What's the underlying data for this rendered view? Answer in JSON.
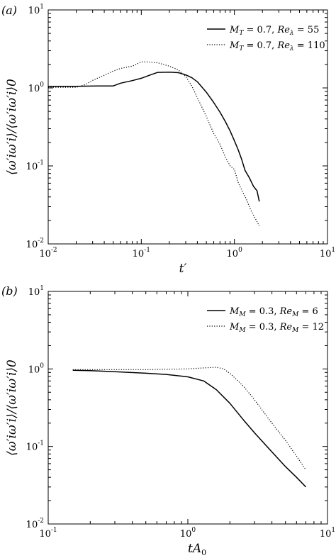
{
  "chart_data": [
    {
      "type": "line",
      "panel_label": "(a)",
      "xlabel": "t′",
      "ylabel": "⟨ω′iω′i⟩/⟨ω′iω′i⟩0",
      "xscale": "log",
      "yscale": "log",
      "xlim": [
        0.01,
        10
      ],
      "ylim": [
        0.01,
        10
      ],
      "x_ticks": [
        {
          "base": "10",
          "exp": "-2"
        },
        {
          "base": "10",
          "exp": "-1"
        },
        {
          "base": "10",
          "exp": "0"
        },
        {
          "base": "10",
          "exp": "1"
        }
      ],
      "y_ticks": [
        {
          "base": "10",
          "exp": "-2"
        },
        {
          "base": "10",
          "exp": "-1"
        },
        {
          "base": "10",
          "exp": "0"
        },
        {
          "base": "10",
          "exp": "1"
        }
      ],
      "legend_position": "top-right",
      "series": [
        {
          "name": "M_T = 0.7, Re_λ = 55",
          "style": "solid",
          "color": "#000000",
          "x": [
            0.01,
            0.02,
            0.035,
            0.05,
            0.06,
            0.08,
            0.1,
            0.12,
            0.15,
            0.2,
            0.25,
            0.3,
            0.35,
            0.4,
            0.5,
            0.6,
            0.7,
            0.8,
            0.9,
            1.0,
            1.1,
            1.2,
            1.3,
            1.45,
            1.6,
            1.75,
            1.85
          ],
          "y": [
            1.05,
            1.05,
            1.06,
            1.06,
            1.15,
            1.24,
            1.33,
            1.44,
            1.58,
            1.59,
            1.57,
            1.47,
            1.35,
            1.2,
            0.88,
            0.65,
            0.49,
            0.37,
            0.28,
            0.21,
            0.16,
            0.12,
            0.088,
            0.07,
            0.055,
            0.048,
            0.035
          ]
        },
        {
          "name": "M_T = 0.7, Re_λ = 110",
          "style": "dotted",
          "color": "#000000",
          "x": [
            0.01,
            0.02,
            0.025,
            0.03,
            0.04,
            0.05,
            0.06,
            0.08,
            0.1,
            0.12,
            0.15,
            0.2,
            0.25,
            0.3,
            0.35,
            0.4,
            0.5,
            0.6,
            0.7,
            0.8,
            0.9,
            1.0,
            1.1,
            1.2,
            1.35,
            1.5,
            1.65,
            1.85
          ],
          "y": [
            1.02,
            1.02,
            1.1,
            1.25,
            1.45,
            1.65,
            1.78,
            1.9,
            2.15,
            2.15,
            2.1,
            1.9,
            1.7,
            1.4,
            1.05,
            0.75,
            0.43,
            0.26,
            0.19,
            0.13,
            0.1,
            0.09,
            0.061,
            0.049,
            0.037,
            0.027,
            0.022,
            0.017
          ]
        }
      ]
    },
    {
      "type": "line",
      "panel_label": "(b)",
      "xlabel": "tA0",
      "ylabel": "⟨ω′iω′i⟩/⟨ω′iω′i⟩0",
      "xscale": "log",
      "yscale": "log",
      "xlim": [
        0.1,
        10
      ],
      "ylim": [
        0.01,
        10
      ],
      "x_ticks": [
        {
          "base": "10",
          "exp": "-1"
        },
        {
          "base": "10",
          "exp": "0"
        },
        {
          "base": "10",
          "exp": "1"
        }
      ],
      "y_ticks": [
        {
          "base": "10",
          "exp": "-2"
        },
        {
          "base": "10",
          "exp": "-1"
        },
        {
          "base": "10",
          "exp": "0"
        },
        {
          "base": "10",
          "exp": "1"
        }
      ],
      "legend_position": "top-right",
      "series": [
        {
          "name": "M_M = 0.3, Re_M = 6",
          "style": "solid",
          "color": "#000000",
          "x": [
            0.15,
            0.2,
            0.3,
            0.5,
            0.7,
            1.0,
            1.3,
            1.6,
            2.0,
            2.5,
            3.0,
            4.0,
            5.0,
            6.0,
            7.0
          ],
          "y": [
            0.96,
            0.95,
            0.92,
            0.88,
            0.85,
            0.79,
            0.7,
            0.54,
            0.36,
            0.22,
            0.15,
            0.085,
            0.055,
            0.04,
            0.03
          ]
        },
        {
          "name": "M_M = 0.3, Re_M = 12",
          "style": "dotted",
          "color": "#000000",
          "x": [
            0.15,
            0.2,
            0.3,
            0.5,
            0.7,
            1.0,
            1.3,
            1.6,
            1.8,
            2.0,
            2.5,
            3.0,
            4.0,
            5.0,
            6.0,
            7.0
          ],
          "y": [
            0.98,
            0.98,
            0.98,
            0.98,
            0.99,
            1.0,
            1.03,
            1.05,
            1.0,
            0.88,
            0.6,
            0.4,
            0.2,
            0.12,
            0.075,
            0.05
          ]
        }
      ]
    }
  ]
}
